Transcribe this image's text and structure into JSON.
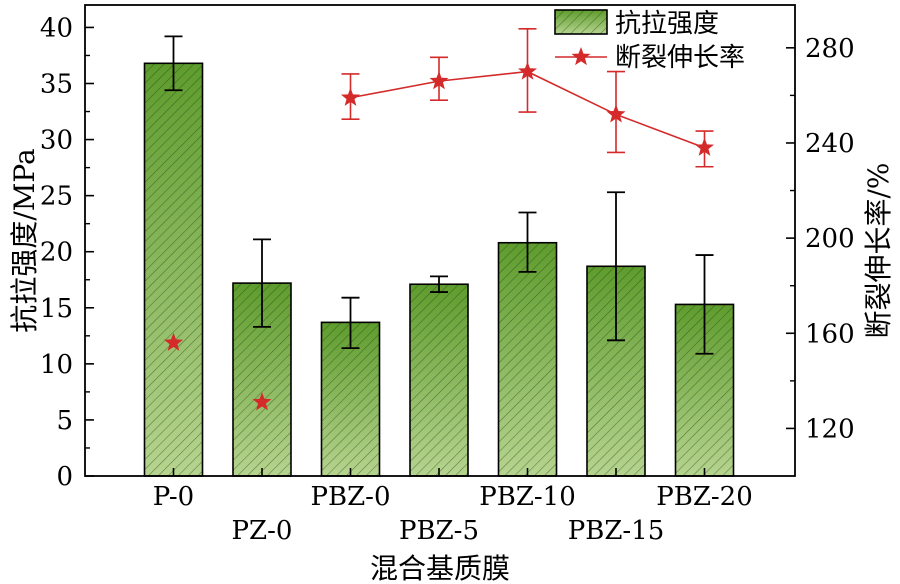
{
  "chart_data": {
    "type": "bar",
    "categories": [
      "P-0",
      "PZ-0",
      "PBZ-0",
      "PBZ-5",
      "PBZ-10",
      "PBZ-15",
      "PBZ-20"
    ],
    "xlabel": "混合基质膜",
    "ylabel": "抗拉强度/MPa",
    "ylabel_right": "断裂伸长率/%",
    "ylim": [
      0,
      42
    ],
    "yticks": [
      "0",
      "5",
      "10",
      "15",
      "20",
      "25",
      "30",
      "35",
      "40"
    ],
    "ylim_right": [
      100,
      298
    ],
    "yticks_right": [
      "120",
      "160",
      "200",
      "240",
      "280"
    ],
    "series": [
      {
        "name": "抗拉强度",
        "axis": "left",
        "mark": "bar",
        "color": "#5c9a2e",
        "values": [
          36.8,
          17.2,
          13.7,
          17.1,
          20.8,
          18.7,
          15.3
        ],
        "error": [
          [
            34.4,
            39.2
          ],
          [
            13.3,
            21.1
          ],
          [
            11.4,
            15.9
          ],
          [
            16.4,
            17.8
          ],
          [
            18.2,
            23.5
          ],
          [
            12.1,
            25.3
          ],
          [
            10.9,
            19.7
          ]
        ]
      },
      {
        "name": "断裂伸长率",
        "axis": "right",
        "mark": "line-star",
        "color": "#d42a2a",
        "values": [
          156,
          131,
          259,
          266,
          270,
          252,
          238
        ],
        "connected_from": 2,
        "error": [
          null,
          null,
          [
            250,
            269
          ],
          [
            258,
            276
          ],
          [
            253,
            288
          ],
          [
            236,
            270
          ],
          [
            230,
            245
          ]
        ]
      }
    ],
    "legend": {
      "position": "top-right",
      "items": [
        "抗拉强度",
        "断裂伸长率"
      ]
    }
  }
}
